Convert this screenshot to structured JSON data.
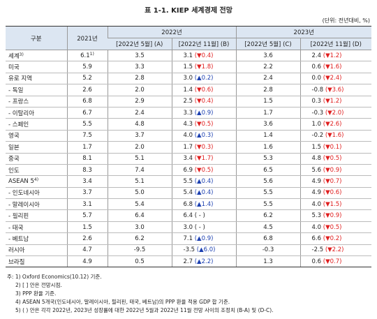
{
  "header": {
    "title": "표 1-1. KIEP 세계경제 전망",
    "unit": "(단위: 전년대비, %)"
  },
  "table": {
    "columns": {
      "category": "구분",
      "y2021": "2021년",
      "y2022": "2022년",
      "y2023": "2023년",
      "may22": "[2022년 5월] (A)",
      "nov22": "[2022년 11월] (B)",
      "may23": "[2022년 5월] (C)",
      "nov23": "[2022년 11월] (D)"
    },
    "rows": [
      {
        "name": "세계",
        "name_note": "3)",
        "y2021": "6.1",
        "y2021_note": "1)",
        "may22": "3.5",
        "nov22": "3.1",
        "chg22": "(▼0.4)",
        "may23": "3.6",
        "nov23": "2.4",
        "chg23": "(▼1.2)"
      },
      {
        "name": "미국",
        "y2021": "5.9",
        "may22": "3.3",
        "nov22": "1.5",
        "chg22": "(▼1.8)",
        "may23": "2.2",
        "nov23": "0.6",
        "chg23": "(▼1.6)"
      },
      {
        "name": "유로 지역",
        "y2021": "5.2",
        "may22": "2.8",
        "nov22": "3.0",
        "chg22": "(▲0.2)",
        "may23": "2.4",
        "nov23": "0.0",
        "chg23": "(▼2.4)"
      },
      {
        "name": "- 독일",
        "y2021": "2.6",
        "may22": "2.0",
        "nov22": "1.4",
        "chg22": "(▼0.6)",
        "may23": "2.8",
        "nov23": "-0.8",
        "chg23": "(▼3.6)"
      },
      {
        "name": "- 프랑스",
        "y2021": "6.8",
        "may22": "2.9",
        "nov22": "2.5",
        "chg22": "(▼0.4)",
        "may23": "1.5",
        "nov23": "0.3",
        "chg23": "(▼1.2)"
      },
      {
        "name": "- 이탈리아",
        "y2021": "6.7",
        "may22": "2.4",
        "nov22": "3.3",
        "chg22": "(▲0.9)",
        "may23": "1.7",
        "nov23": "-0.3",
        "chg23": "(▼2.0)"
      },
      {
        "name": "- 스페인",
        "y2021": "5.5",
        "may22": "4.8",
        "nov22": "4.3",
        "chg22": "(▼0.5)",
        "may23": "3.6",
        "nov23": "1.0",
        "chg23": "(▼2.6)"
      },
      {
        "name": "영국",
        "y2021": "7.5",
        "may22": "3.7",
        "nov22": "4.0",
        "chg22": "(▲0.3)",
        "may23": "1.4",
        "nov23": "-0.2",
        "chg23": "(▼1.6)"
      },
      {
        "name": "일본",
        "y2021": "1.7",
        "may22": "2.0",
        "nov22": "1.7",
        "chg22": "(▼0.3)",
        "may23": "1.6",
        "nov23": "1.5",
        "chg23": "(▼0.1)"
      },
      {
        "name": "중국",
        "y2021": "8.1",
        "may22": "5.1",
        "nov22": "3.4",
        "chg22": "(▼1.7)",
        "may23": "5.3",
        "nov23": "4.8",
        "chg23": "(▼0.5)"
      },
      {
        "name": "인도",
        "y2021": "8.3",
        "may22": "7.4",
        "nov22": "6.9",
        "chg22": "(▼0.5)",
        "may23": "6.5",
        "nov23": "5.6",
        "chg23": "(▼0.9)"
      },
      {
        "name": "ASEAN 5",
        "name_note": "4)",
        "y2021": "3.4",
        "may22": "5.1",
        "nov22": "5.5",
        "chg22": "(▲0.4)",
        "may23": "5.6",
        "nov23": "4.9",
        "chg23": "(▼0.7)"
      },
      {
        "name": "- 인도네시아",
        "y2021": "3.7",
        "may22": "5.0",
        "nov22": "5.4",
        "chg22": "(▲0.4)",
        "may23": "5.5",
        "nov23": "4.9",
        "chg23": "(▼0.6)"
      },
      {
        "name": "- 말레이시아",
        "y2021": "3.1",
        "may22": "5.4",
        "nov22": "6.8",
        "chg22": "(▲1.4)",
        "may23": "5.5",
        "nov23": "4.0",
        "chg23": "(▼1.5)"
      },
      {
        "name": "- 필리핀",
        "y2021": "5.7",
        "may22": "6.4",
        "nov22": "6.4",
        "chg22": "( - )",
        "may23": "6.2",
        "nov23": "5.3",
        "chg23": "(▼0.9)"
      },
      {
        "name": "- 태국",
        "y2021": "1.5",
        "may22": "3.0",
        "nov22": "3.0",
        "chg22": "( - )",
        "may23": "4.5",
        "nov23": "4.0",
        "chg23": "(▼0.5)"
      },
      {
        "name": "- 베트남",
        "y2021": "2.6",
        "may22": "6.2",
        "nov22": "7.1",
        "chg22": "(▲0.9)",
        "may23": "6.8",
        "nov23": "6.6",
        "chg23": "(▼0.2)"
      },
      {
        "name": "러시아",
        "y2021": "4.7",
        "may22": "-9.5",
        "nov22": "-3.5",
        "chg22": "(▲6.0)",
        "may23": "-0.3",
        "nov23": "-2.5",
        "chg23": "(▼2.2)"
      },
      {
        "name": "브라질",
        "y2021": "4.9",
        "may22": "0.5",
        "nov22": "2.7",
        "chg22": "(▲2.2)",
        "may23": "1.3",
        "nov23": "0.6",
        "chg23": "(▼0.7)"
      }
    ]
  },
  "notes": {
    "label": "주:",
    "items": [
      "1) Oxford Economics(10.12) 기준.",
      "2) [ ] 안은 전망시점.",
      "3) PPP 환율 기준.",
      "4) ASEAN 5개국(인도네시아, 말레이시아, 필리핀, 태국, 베트남)의 PPP 환율 적용 GDP 합 기준.",
      "5) ( ) 안은 각각 2022년, 2023년 성장률에 대한 2022년 5월과 2022년 11월 전망 사이의 조정치 (B-A) 및 (D-C)."
    ]
  }
}
